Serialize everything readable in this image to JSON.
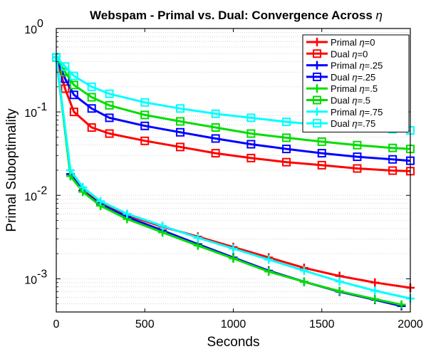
{
  "chart_data": {
    "type": "line",
    "title": "Webspam - Primal vs. Dual: Convergence Across η",
    "xlabel": "Seconds",
    "ylabel": "Primal Suboptimality",
    "xlim": [
      0,
      2000
    ],
    "ylim": [
      0.0004,
      1
    ],
    "yscale": "log",
    "grid": "minor y dotted",
    "legend": "top-right",
    "xticks": [
      "0",
      "500",
      "1000",
      "1500",
      "2000"
    ],
    "yticks": [
      {
        "base": "10",
        "exp": "0",
        "value": 1
      },
      {
        "base": "10",
        "exp": "-1",
        "value": 0.1
      },
      {
        "base": "10",
        "exp": "-2",
        "value": 0.01
      },
      {
        "base": "10",
        "exp": "-3",
        "value": 0.001
      }
    ],
    "series": [
      {
        "name": "Primal η=0",
        "color": "#ff0000",
        "marker": "plus",
        "x": [
          0,
          80,
          150,
          250,
          400,
          600,
          800,
          1000,
          1200,
          1400,
          1600,
          1800,
          2000
        ],
        "y": [
          0.45,
          0.018,
          0.0115,
          0.008,
          0.0058,
          0.0042,
          0.0032,
          0.0024,
          0.0018,
          0.00135,
          0.00108,
          0.0009,
          0.00078
        ]
      },
      {
        "name": "Dual η=0",
        "color": "#ff0000",
        "marker": "square",
        "x": [
          0,
          50,
          100,
          200,
          300,
          500,
          700,
          900,
          1100,
          1300,
          1500,
          1700,
          1900,
          2000
        ],
        "y": [
          0.45,
          0.19,
          0.1,
          0.065,
          0.055,
          0.045,
          0.038,
          0.032,
          0.028,
          0.025,
          0.023,
          0.021,
          0.0198,
          0.0195
        ]
      },
      {
        "name": "Primal η=.25",
        "color": "#0000ff",
        "marker": "plus",
        "x": [
          0,
          80,
          150,
          250,
          400,
          600,
          800,
          1000,
          1200,
          1400,
          1600,
          1800,
          1950
        ],
        "y": [
          0.45,
          0.018,
          0.0112,
          0.0078,
          0.0055,
          0.0038,
          0.0026,
          0.0018,
          0.00125,
          0.00092,
          0.0007,
          0.00056,
          0.00047
        ]
      },
      {
        "name": "Dual η=.25",
        "color": "#0000ff",
        "marker": "square",
        "x": [
          0,
          50,
          100,
          200,
          300,
          500,
          700,
          900,
          1100,
          1300,
          1500,
          1700,
          1900,
          2000
        ],
        "y": [
          0.45,
          0.25,
          0.16,
          0.11,
          0.085,
          0.068,
          0.057,
          0.048,
          0.041,
          0.036,
          0.032,
          0.029,
          0.027,
          0.026
        ]
      },
      {
        "name": "Primal η=.5",
        "color": "#00dd00",
        "marker": "plus",
        "x": [
          0,
          80,
          150,
          250,
          400,
          600,
          800,
          1000,
          1200,
          1400,
          1600,
          1800,
          1950
        ],
        "y": [
          0.45,
          0.017,
          0.011,
          0.0075,
          0.0052,
          0.0036,
          0.0025,
          0.00175,
          0.00122,
          0.00092,
          0.00071,
          0.00057,
          0.00049
        ]
      },
      {
        "name": "Dual η=.5",
        "color": "#00dd00",
        "marker": "square",
        "x": [
          0,
          50,
          100,
          200,
          300,
          500,
          700,
          900,
          1100,
          1300,
          1500,
          1700,
          1900,
          2000
        ],
        "y": [
          0.45,
          0.3,
          0.21,
          0.15,
          0.12,
          0.092,
          0.077,
          0.065,
          0.055,
          0.049,
          0.044,
          0.04,
          0.037,
          0.036
        ]
      },
      {
        "name": "Primal η=.75",
        "color": "#00ffff",
        "marker": "plus",
        "x": [
          0,
          80,
          150,
          250,
          400,
          600,
          800,
          1000,
          1200,
          1400,
          1600,
          1800,
          2000
        ],
        "y": [
          0.45,
          0.02,
          0.0125,
          0.0085,
          0.006,
          0.0043,
          0.0031,
          0.0023,
          0.0017,
          0.00125,
          0.00093,
          0.00072,
          0.00058
        ]
      },
      {
        "name": "Dual η=.75",
        "color": "#00ffff",
        "marker": "square",
        "x": [
          0,
          50,
          100,
          200,
          300,
          500,
          700,
          900,
          1100,
          1300,
          1500,
          1700,
          1900,
          2000
        ],
        "y": [
          0.45,
          0.35,
          0.27,
          0.2,
          0.165,
          0.13,
          0.11,
          0.095,
          0.085,
          0.076,
          0.07,
          0.065,
          0.062,
          0.06
        ]
      }
    ]
  }
}
